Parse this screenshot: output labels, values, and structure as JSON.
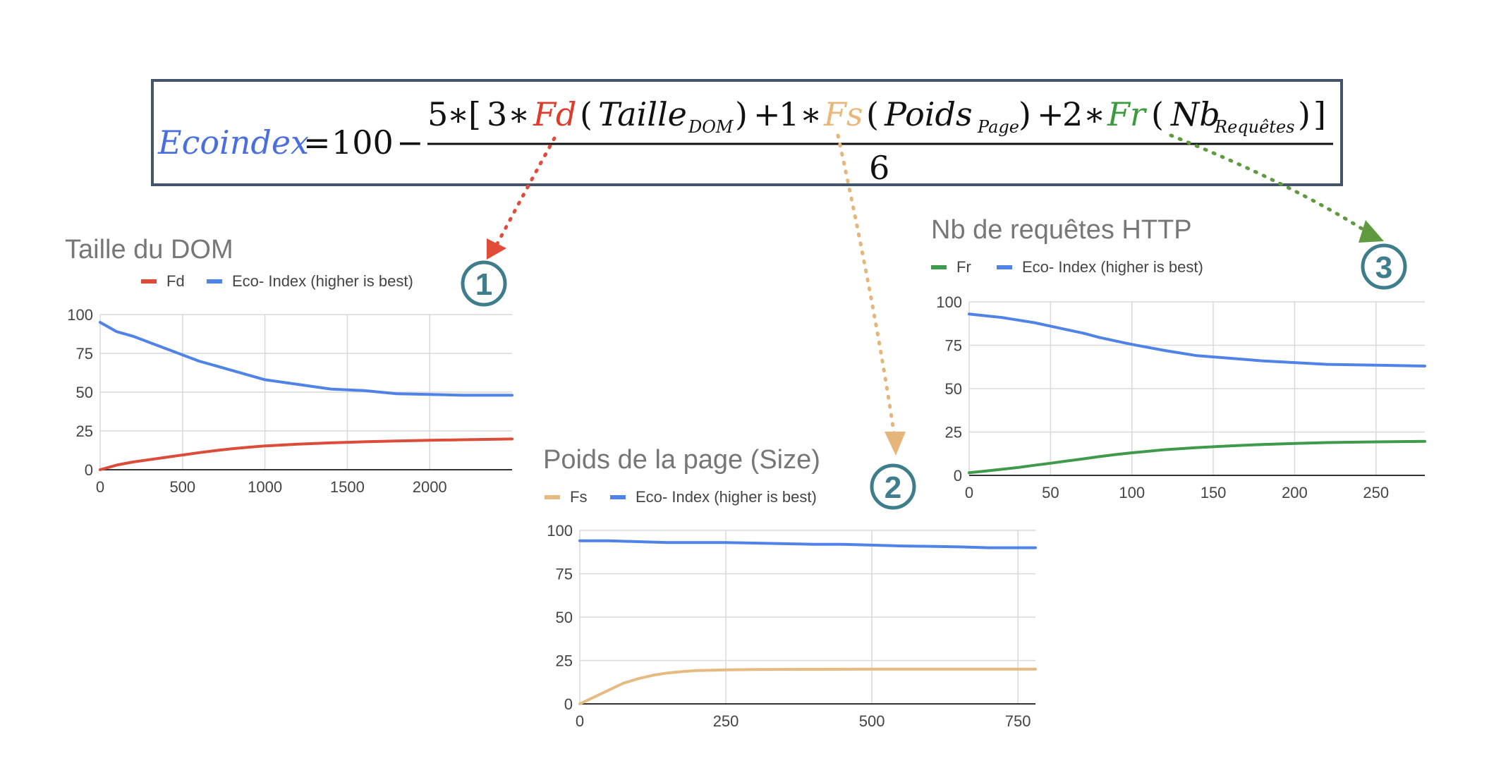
{
  "formula": {
    "lhs": "Ecoindex",
    "equals": "=",
    "constant": "100",
    "minus": "−",
    "coef_main": "5",
    "star": "∗",
    "open_bracket": "[",
    "close_bracket": "]",
    "w1": "3",
    "f1": "Fd",
    "a1": "Taille",
    "a1_sub": "DOM",
    "plus1": "+",
    "w2": "1",
    "f2": "Fs",
    "a2": "Poids",
    "a2_sub": "Page",
    "plus2": "+",
    "w3": "2",
    "f3": "Fr",
    "a3": "Nb",
    "a3_sub": "Requêtes",
    "denominator": "6",
    "colors": {
      "lhs": "#4a6fdc",
      "f1": "#dd3b2c",
      "f2": "#e8b87a",
      "f3": "#3d9a3d",
      "text": "#111111"
    }
  },
  "markers": [
    {
      "label": "1",
      "color": "#3d7d8c"
    },
    {
      "label": "2",
      "color": "#3d7d8c"
    },
    {
      "label": "3",
      "color": "#3d7d8c"
    }
  ],
  "chart_data": [
    {
      "type": "line",
      "title": "Taille du DOM",
      "legend_position": "top",
      "grid": true,
      "xlim": [
        0,
        2500
      ],
      "ylim": [
        0,
        100
      ],
      "xticks": [
        "0",
        "500",
        "1000",
        "1500",
        "2000"
      ],
      "xtick_values": [
        0,
        500,
        1000,
        1500,
        2000
      ],
      "yticks": [
        "0",
        "25",
        "50",
        "75",
        "100"
      ],
      "ytick_values": [
        0,
        25,
        50,
        75,
        100
      ],
      "series": [
        {
          "name": "Fd",
          "color": "#dd4b39",
          "x": [
            0,
            100,
            200,
            300,
            400,
            500,
            600,
            700,
            800,
            900,
            1000,
            1200,
            1400,
            1600,
            1800,
            2000,
            2200,
            2500
          ],
          "y": [
            0,
            3,
            5,
            6.5,
            8,
            9.5,
            11,
            12.3,
            13.5,
            14.5,
            15.3,
            16.5,
            17.3,
            18,
            18.5,
            19,
            19.3,
            19.8
          ]
        },
        {
          "name": "Eco- Index (higher is best)",
          "color": "#4f83e8",
          "x": [
            0,
            100,
            200,
            300,
            400,
            500,
            600,
            700,
            800,
            900,
            1000,
            1200,
            1400,
            1600,
            1800,
            2000,
            2200,
            2500
          ],
          "y": [
            95,
            89,
            86,
            82,
            78,
            74,
            70,
            67,
            64,
            61,
            58,
            55,
            52,
            51,
            49,
            48.5,
            48,
            48
          ]
        }
      ]
    },
    {
      "type": "line",
      "title": "Poids de la page (Size)",
      "legend_position": "top",
      "grid": true,
      "xlim": [
        0,
        780
      ],
      "ylim": [
        0,
        100
      ],
      "xticks": [
        "0",
        "250",
        "500",
        "750"
      ],
      "xtick_values": [
        0,
        250,
        500,
        750
      ],
      "yticks": [
        "0",
        "25",
        "50",
        "75",
        "100"
      ],
      "ytick_values": [
        0,
        25,
        50,
        75,
        100
      ],
      "series": [
        {
          "name": "Fs",
          "color": "#e6bb82",
          "x": [
            0,
            25,
            50,
            75,
            100,
            125,
            150,
            175,
            200,
            250,
            300,
            400,
            500,
            600,
            700,
            780
          ],
          "y": [
            0,
            4,
            8,
            12,
            14.5,
            16.5,
            17.8,
            18.6,
            19.2,
            19.6,
            19.8,
            19.9,
            20,
            20,
            20,
            20
          ]
        },
        {
          "name": "Eco- Index (higher is best)",
          "color": "#4f83e8",
          "x": [
            0,
            50,
            100,
            150,
            200,
            250,
            300,
            350,
            400,
            450,
            500,
            550,
            600,
            650,
            700,
            780
          ],
          "y": [
            94,
            94,
            93.5,
            93,
            93,
            93,
            92.7,
            92.3,
            92,
            92,
            91.5,
            91,
            90.8,
            90.5,
            90,
            90
          ]
        }
      ]
    },
    {
      "type": "line",
      "title": "Nb de requêtes HTTP",
      "legend_position": "top",
      "grid": true,
      "xlim": [
        0,
        280
      ],
      "ylim": [
        0,
        100
      ],
      "xticks": [
        "0",
        "50",
        "100",
        "150",
        "200",
        "250"
      ],
      "xtick_values": [
        0,
        50,
        100,
        150,
        200,
        250
      ],
      "yticks": [
        "0",
        "25",
        "50",
        "75",
        "100"
      ],
      "ytick_values": [
        0,
        25,
        50,
        75,
        100
      ],
      "series": [
        {
          "name": "Fr",
          "color": "#3f9a4b",
          "x": [
            0,
            10,
            20,
            30,
            40,
            50,
            60,
            70,
            80,
            90,
            100,
            120,
            140,
            160,
            180,
            200,
            220,
            250,
            280
          ],
          "y": [
            1.5,
            2.5,
            3.5,
            4.5,
            5.8,
            7,
            8.3,
            9.5,
            10.8,
            12,
            13,
            14.8,
            16,
            17,
            17.8,
            18.4,
            18.9,
            19.3,
            19.6
          ]
        },
        {
          "name": "Eco- Index (higher is best)",
          "color": "#4f83e8",
          "x": [
            0,
            10,
            20,
            30,
            40,
            50,
            60,
            70,
            80,
            90,
            100,
            120,
            140,
            160,
            180,
            200,
            220,
            250,
            280
          ],
          "y": [
            93,
            92,
            91,
            89.5,
            88,
            86,
            84,
            82,
            79.5,
            77.5,
            75.5,
            72,
            69,
            67.5,
            66,
            65,
            64,
            63.5,
            63
          ]
        }
      ]
    }
  ]
}
